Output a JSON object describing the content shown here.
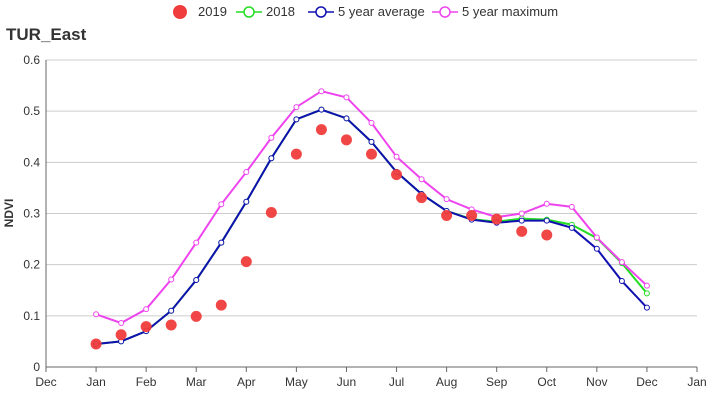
{
  "chart_data": {
    "type": "line",
    "title": "TUR_East",
    "xlabel": "",
    "ylabel": "NDVI",
    "ylim": [
      0,
      0.6
    ],
    "yticks": [
      "0",
      "0.1",
      "0.2",
      "0.3",
      "0.4",
      "0.5",
      "0.6"
    ],
    "xlim": [
      -1,
      12
    ],
    "xticks": [
      "Dec",
      "Jan",
      "Feb",
      "Mar",
      "Apr",
      "May",
      "Jun",
      "Jul",
      "Aug",
      "Sep",
      "Oct",
      "Nov",
      "Dec",
      "Jan"
    ],
    "grid": "horizontal",
    "legend_position": "top-center",
    "x": [
      0,
      0.5,
      1,
      1.5,
      2,
      2.5,
      3,
      3.5,
      4,
      4.5,
      5,
      5.5,
      6,
      6.5,
      7,
      7.5,
      8,
      8.5,
      9,
      9.5,
      10,
      10.5,
      11
    ],
    "series": [
      {
        "name": "2019",
        "style": "dots",
        "color": "#f03c3c",
        "x": [
          0,
          0.5,
          1,
          1.5,
          2,
          2.5,
          3,
          3.5,
          4,
          4.5,
          5,
          5.5,
          6,
          6.5,
          7,
          7.5,
          8,
          8.5,
          9
        ],
        "values": [
          0.045,
          0.063,
          0.079,
          0.082,
          0.099,
          0.121,
          0.206,
          0.302,
          0.416,
          0.464,
          0.444,
          0.416,
          0.376,
          0.331,
          0.296,
          0.296,
          0.289,
          0.265,
          0.258
        ]
      },
      {
        "name": "2018",
        "style": "line",
        "color": "#22dd22",
        "values": [
          0.045,
          0.05,
          0.07,
          0.11,
          0.17,
          0.243,
          0.323,
          0.408,
          0.484,
          0.503,
          0.486,
          0.44,
          0.381,
          0.338,
          0.305,
          0.289,
          0.284,
          0.29,
          0.288,
          0.278,
          0.252,
          0.203,
          0.144
        ]
      },
      {
        "name": "5 year average",
        "style": "line",
        "color": "#1010b0",
        "values": [
          0.045,
          0.05,
          0.07,
          0.11,
          0.17,
          0.243,
          0.323,
          0.408,
          0.484,
          0.503,
          0.486,
          0.44,
          0.381,
          0.338,
          0.305,
          0.288,
          0.282,
          0.286,
          0.286,
          0.272,
          0.231,
          0.168,
          0.116
        ]
      },
      {
        "name": "5 year maximum",
        "style": "line",
        "color": "#ee44ee",
        "values": [
          0.103,
          0.086,
          0.113,
          0.171,
          0.243,
          0.318,
          0.381,
          0.448,
          0.508,
          0.539,
          0.527,
          0.477,
          0.411,
          0.367,
          0.328,
          0.308,
          0.293,
          0.3,
          0.319,
          0.313,
          0.253,
          0.205,
          0.159
        ]
      }
    ]
  }
}
